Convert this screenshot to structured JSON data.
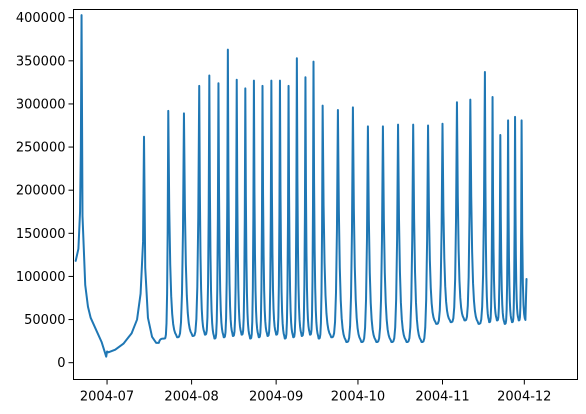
{
  "chart_data": {
    "type": "line",
    "title": "",
    "xlabel": "",
    "ylabel": "",
    "xlim": [
      -12.3,
      172.5
    ],
    "ylim": [
      -19500,
      409500
    ],
    "x_axis": {
      "ticks": [
        {
          "label": "2004-07",
          "day": 0
        },
        {
          "label": "2004-08",
          "day": 31
        },
        {
          "label": "2004-09",
          "day": 62
        },
        {
          "label": "2004-10",
          "day": 92
        },
        {
          "label": "2004-11",
          "day": 123
        },
        {
          "label": "2004-12",
          "day": 153
        }
      ]
    },
    "y_axis": {
      "ticks": [
        0,
        50000,
        100000,
        150000,
        200000,
        250000,
        300000,
        350000,
        400000
      ],
      "tick_labels": [
        "0",
        "50000",
        "100000",
        "150000",
        "200000",
        "250000",
        "300000",
        "350000",
        "400000"
      ]
    },
    "color": "#1f77b4",
    "series": [
      {
        "name": "series",
        "x_unit": "days since 2004-07-01",
        "points": [
          [
            -11.5,
            118000
          ],
          [
            -10.5,
            132000
          ],
          [
            -9.9,
            175000
          ],
          [
            -9.6,
            250000
          ],
          [
            -9.35,
            403000
          ],
          [
            -9.0,
            170000
          ],
          [
            -8.0,
            90000
          ],
          [
            -7.0,
            65000
          ],
          [
            -6.0,
            52000
          ],
          [
            -4.0,
            38000
          ],
          [
            -2.0,
            24000
          ],
          [
            -0.8,
            12000
          ],
          [
            -0.3,
            7000
          ],
          [
            0.0,
            13000
          ],
          [
            0.5,
            12000
          ],
          [
            3.0,
            15000
          ],
          [
            6.0,
            22000
          ],
          [
            9.0,
            34000
          ],
          [
            11.0,
            50000
          ],
          [
            12.3,
            80000
          ],
          [
            13.2,
            140000
          ],
          [
            13.55,
            262000
          ],
          [
            14.0,
            110000
          ],
          [
            15.0,
            52000
          ],
          [
            16.5,
            30000
          ],
          [
            18.0,
            23000
          ],
          [
            19.0,
            23000
          ],
          [
            22.45,
            292000
          ],
          [
            28.2,
            289000
          ],
          [
            33.8,
            321000
          ],
          [
            37.5,
            333000
          ],
          [
            40.85,
            324000
          ],
          [
            44.3,
            363000
          ],
          [
            47.55,
            328000
          ],
          [
            50.7,
            318000
          ],
          [
            53.85,
            327000
          ],
          [
            57.0,
            321000
          ],
          [
            60.25,
            327000
          ],
          [
            63.4,
            327000
          ],
          [
            66.55,
            321000
          ],
          [
            69.6,
            353000
          ],
          [
            72.75,
            331000
          ],
          [
            75.7,
            349000
          ],
          [
            79.05,
            298000
          ],
          [
            84.65,
            293000
          ],
          [
            90.15,
            296000
          ],
          [
            95.65,
            274000
          ],
          [
            101.15,
            274000
          ],
          [
            106.7,
            276000
          ],
          [
            112.25,
            276000
          ],
          [
            117.7,
            275000
          ],
          [
            123.0,
            277000
          ],
          [
            128.3,
            302000
          ],
          [
            133.2,
            305000
          ],
          [
            138.55,
            337000
          ],
          [
            141.35,
            308000
          ],
          [
            144.2,
            264000
          ],
          [
            147.05,
            281000
          ],
          [
            149.6,
            285000
          ],
          [
            152.0,
            281000
          ],
          [
            153.8,
            97000
          ]
        ]
      }
    ]
  }
}
